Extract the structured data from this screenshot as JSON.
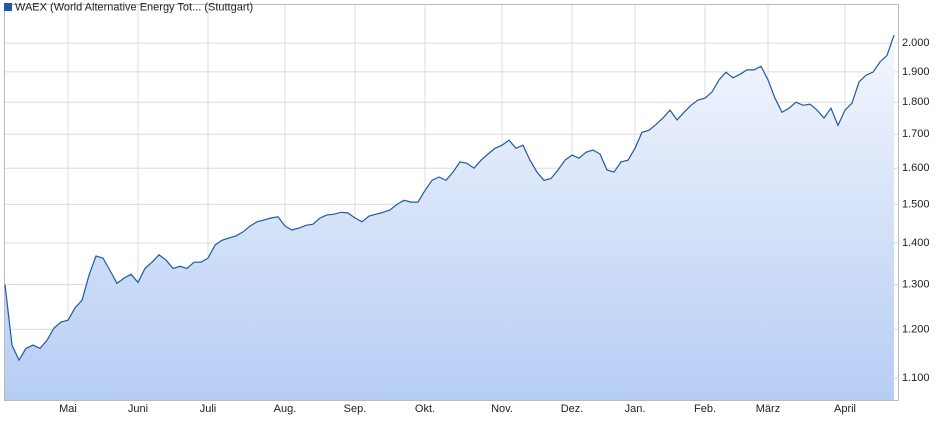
{
  "chart_data": {
    "type": "area",
    "log_scale": true,
    "grid": true,
    "series": [
      {
        "name": "WAEX (World Alternative Energy Tot... (Stuttgart)",
        "color": "#1f5aa8",
        "values": [
          1300,
          1167,
          1136,
          1160,
          1167,
          1160,
          1177,
          1203,
          1216,
          1220,
          1247,
          1264,
          1322,
          1368,
          1363,
          1333,
          1303,
          1315,
          1324,
          1305,
          1338,
          1353,
          1371,
          1358,
          1338,
          1343,
          1338,
          1353,
          1353,
          1363,
          1395,
          1407,
          1413,
          1418,
          1428,
          1443,
          1454,
          1459,
          1464,
          1467,
          1443,
          1433,
          1438,
          1445,
          1448,
          1464,
          1472,
          1474,
          1479,
          1477,
          1464,
          1454,
          1469,
          1474,
          1479,
          1485,
          1500,
          1511,
          1506,
          1506,
          1538,
          1566,
          1575,
          1566,
          1589,
          1618,
          1614,
          1600,
          1623,
          1641,
          1658,
          1667,
          1682,
          1658,
          1667,
          1623,
          1589,
          1566,
          1571,
          1595,
          1623,
          1638,
          1629,
          1646,
          1653,
          1641,
          1595,
          1589,
          1618,
          1623,
          1658,
          1706,
          1712,
          1730,
          1750,
          1775,
          1744,
          1768,
          1790,
          1807,
          1813,
          1833,
          1873,
          1899,
          1880,
          1892,
          1907,
          1907,
          1919,
          1873,
          1813,
          1768,
          1781,
          1800,
          1790,
          1794,
          1775,
          1750,
          1781,
          1727,
          1775,
          1797,
          1866,
          1889,
          1899,
          1934,
          1957,
          2029
        ]
      }
    ],
    "categories": [
      null,
      null,
      null,
      null,
      null,
      null,
      null,
      null,
      null,
      "Mai",
      null,
      null,
      null,
      null,
      null,
      null,
      null,
      null,
      null,
      "Juni",
      null,
      null,
      null,
      null,
      null,
      null,
      null,
      null,
      null,
      "Juli",
      null,
      null,
      null,
      null,
      null,
      null,
      null,
      null,
      null,
      null,
      "Aug.",
      null,
      null,
      null,
      null,
      null,
      null,
      null,
      null,
      null,
      "Sep.",
      null,
      null,
      null,
      null,
      null,
      null,
      null,
      null,
      null,
      "Okt.",
      null,
      null,
      null,
      null,
      null,
      null,
      null,
      null,
      null,
      null,
      "Nov.",
      null,
      null,
      null,
      null,
      null,
      null,
      null,
      null,
      null,
      "Dez.",
      null,
      null,
      null,
      null,
      null,
      null,
      null,
      null,
      "Jan.",
      null,
      null,
      null,
      null,
      null,
      null,
      null,
      null,
      null,
      "Feb.",
      null,
      null,
      null,
      null,
      null,
      null,
      null,
      null,
      "März",
      null,
      null,
      null,
      null,
      null,
      null,
      null,
      null,
      null,
      null,
      "April",
      null,
      null,
      null,
      null,
      null,
      null,
      null
    ],
    "ylim": [
      1058,
      2141
    ],
    "yticks": [
      {
        "value": 1100,
        "label": "1.100"
      },
      {
        "value": 1200,
        "label": "1.200"
      },
      {
        "value": 1300,
        "label": "1.300"
      },
      {
        "value": 1400,
        "label": "1.400"
      },
      {
        "value": 1500,
        "label": "1.500"
      },
      {
        "value": 1600,
        "label": "1.600"
      },
      {
        "value": 1700,
        "label": "1.700"
      },
      {
        "value": 1800,
        "label": "1.800"
      },
      {
        "value": 1900,
        "label": "1.900"
      },
      {
        "value": 2000,
        "label": "2.000"
      }
    ]
  }
}
